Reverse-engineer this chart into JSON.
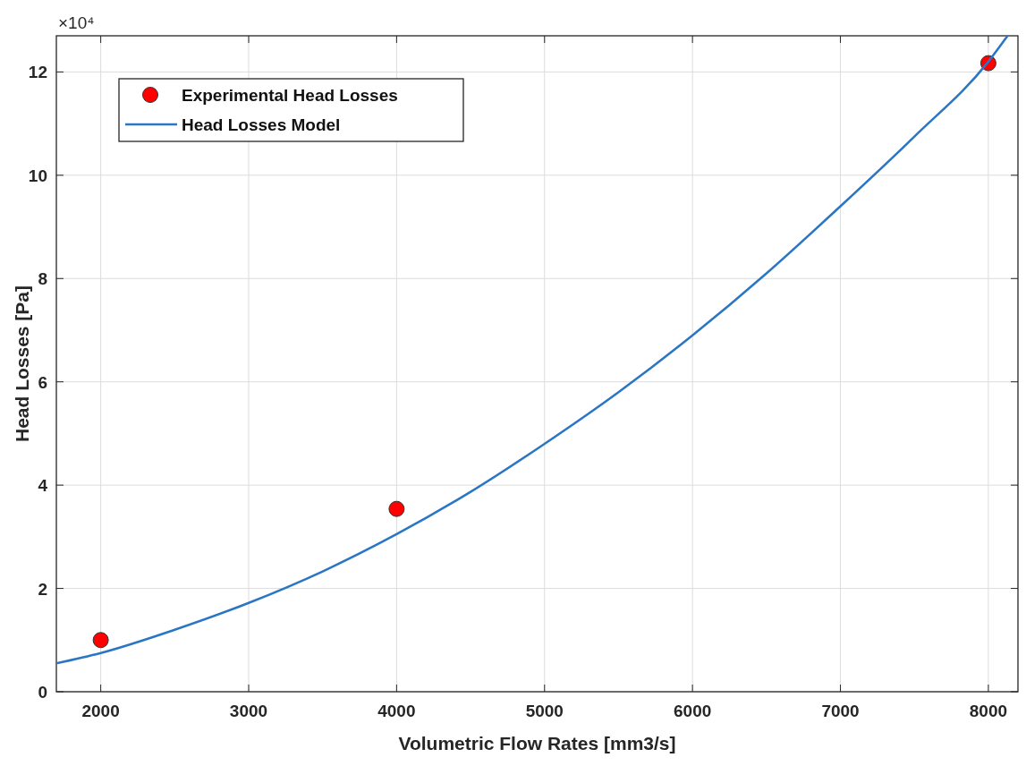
{
  "chart_data": {
    "type": "scatter",
    "xlabel": "Volumetric Flow Rates [mm3/s]",
    "ylabel": "Head Losses [Pa]",
    "xlim": [
      1700,
      8200
    ],
    "xticks": [
      2000,
      3000,
      4000,
      5000,
      6000,
      7000,
      8000
    ],
    "ylim": [
      0,
      12.7
    ],
    "yticks": [
      0,
      2,
      4,
      6,
      8,
      10,
      12
    ],
    "annotations": [
      "×10⁴"
    ],
    "grid": true,
    "legend": "top left",
    "series": [
      {
        "name": "Experimental Head Losses",
        "marker": "circle",
        "color": "#ff0000",
        "x": [
          2000,
          4000,
          8000
        ],
        "values": [
          1.0,
          3.54,
          12.17
        ]
      },
      {
        "name": "Head Losses Model",
        "type": "line",
        "marker": "none",
        "color": "#2a76c4",
        "x": [
          1700,
          2000,
          2500,
          3000,
          3500,
          4000,
          4500,
          5000,
          5500,
          6000,
          6500,
          7000,
          7500,
          8000,
          8130
        ],
        "values": [
          0.55,
          0.75,
          1.2,
          1.72,
          2.33,
          3.05,
          3.87,
          4.8,
          5.8,
          6.9,
          8.1,
          9.4,
          10.75,
          12.2,
          12.7
        ]
      }
    ]
  }
}
